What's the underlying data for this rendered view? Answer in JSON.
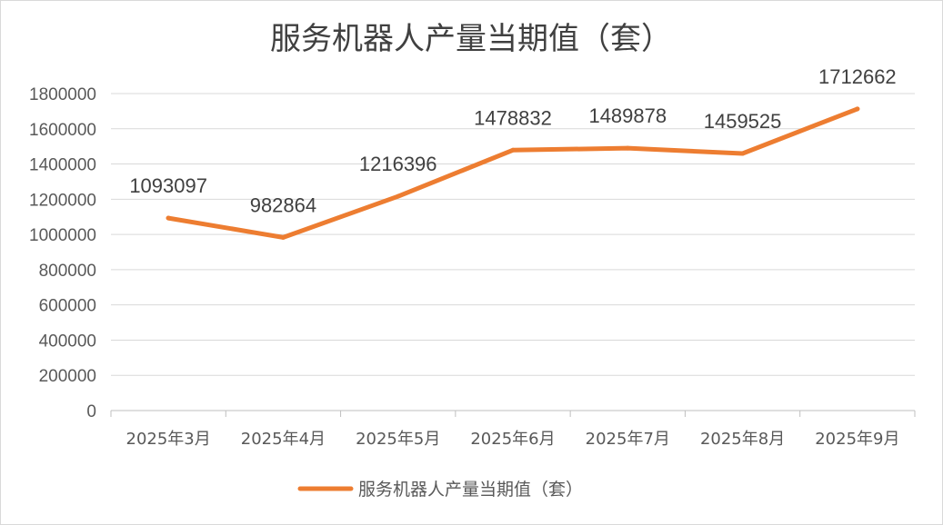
{
  "chart_data": {
    "type": "line",
    "title": "服务机器人产量当期值（套）",
    "categories": [
      "2025年3月",
      "2025年4月",
      "2025年5月",
      "2025年6月",
      "2025年7月",
      "2025年8月",
      "2025年9月"
    ],
    "series": [
      {
        "name": "服务机器人产量当期值（套）",
        "values": [
          1093097,
          982864,
          1216396,
          1478832,
          1489878,
          1459525,
          1712662
        ],
        "color": "#ed7d31"
      }
    ],
    "yticks": [
      "0",
      "200000",
      "400000",
      "600000",
      "800000",
      "1000000",
      "1200000",
      "1400000",
      "1600000",
      "1800000"
    ],
    "ylim": [
      0,
      1800000
    ],
    "xlabel": "",
    "ylabel": "",
    "grid": true,
    "legend_position": "bottom",
    "data_labels": [
      "1093097",
      "982864",
      "1216396",
      "1478832",
      "1489878",
      "1459525",
      "1712662"
    ]
  }
}
